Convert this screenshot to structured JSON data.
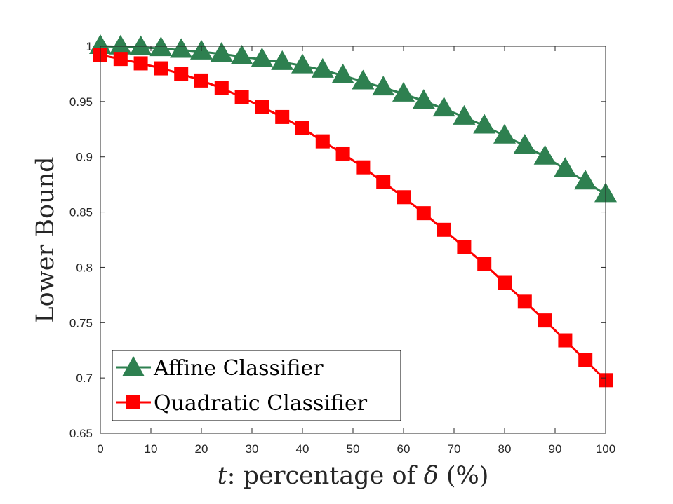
{
  "colors": {
    "affine": "#2E8050",
    "quadratic": "#FF0000",
    "axis": "#262626",
    "background": "#FFFFFF"
  },
  "chart_data": {
    "type": "line",
    "title": "",
    "xlabel_var": "t",
    "xlabel_rest": ": percentage of ",
    "xlabel_symbol": "δ",
    "xlabel_unit": " (%)",
    "ylabel": "Lower Bound",
    "xlim": [
      0,
      100
    ],
    "ylim": [
      0.65,
      1
    ],
    "xticks": [
      0,
      10,
      20,
      30,
      40,
      50,
      60,
      70,
      80,
      90,
      100
    ],
    "xtick_labels": [
      "0",
      "10",
      "20",
      "30",
      "40",
      "50",
      "60",
      "70",
      "80",
      "90",
      "100"
    ],
    "yticks": [
      0.65,
      0.7,
      0.75,
      0.8,
      0.85,
      0.9,
      0.95,
      1
    ],
    "ytick_labels": [
      "0.65",
      "0.7",
      "0.75",
      "0.8",
      "0.85",
      "0.9",
      "0.95",
      "1"
    ],
    "grid": false,
    "legend_position": "bottom-left",
    "x": [
      0,
      4,
      8,
      12,
      16,
      20,
      24,
      28,
      32,
      36,
      40,
      44,
      48,
      52,
      56,
      60,
      64,
      68,
      72,
      76,
      80,
      84,
      88,
      92,
      96,
      100
    ],
    "series": [
      {
        "name": "Affine Classifier",
        "marker": "triangle",
        "color": "#2E8050",
        "values": [
          1.0,
          0.9995,
          0.999,
          0.998,
          0.9965,
          0.995,
          0.993,
          0.9905,
          0.988,
          0.9855,
          0.9825,
          0.9785,
          0.9735,
          0.968,
          0.9625,
          0.957,
          0.9505,
          0.9435,
          0.936,
          0.928,
          0.919,
          0.91,
          0.9,
          0.889,
          0.8775,
          0.866
        ]
      },
      {
        "name": "Quadratic Classifier",
        "marker": "square",
        "color": "#FF0000",
        "values": [
          0.992,
          0.9885,
          0.9845,
          0.98,
          0.975,
          0.969,
          0.962,
          0.954,
          0.945,
          0.936,
          0.926,
          0.914,
          0.903,
          0.8905,
          0.877,
          0.8635,
          0.849,
          0.834,
          0.8185,
          0.803,
          0.786,
          0.769,
          0.752,
          0.734,
          0.716,
          0.698
        ]
      }
    ]
  }
}
